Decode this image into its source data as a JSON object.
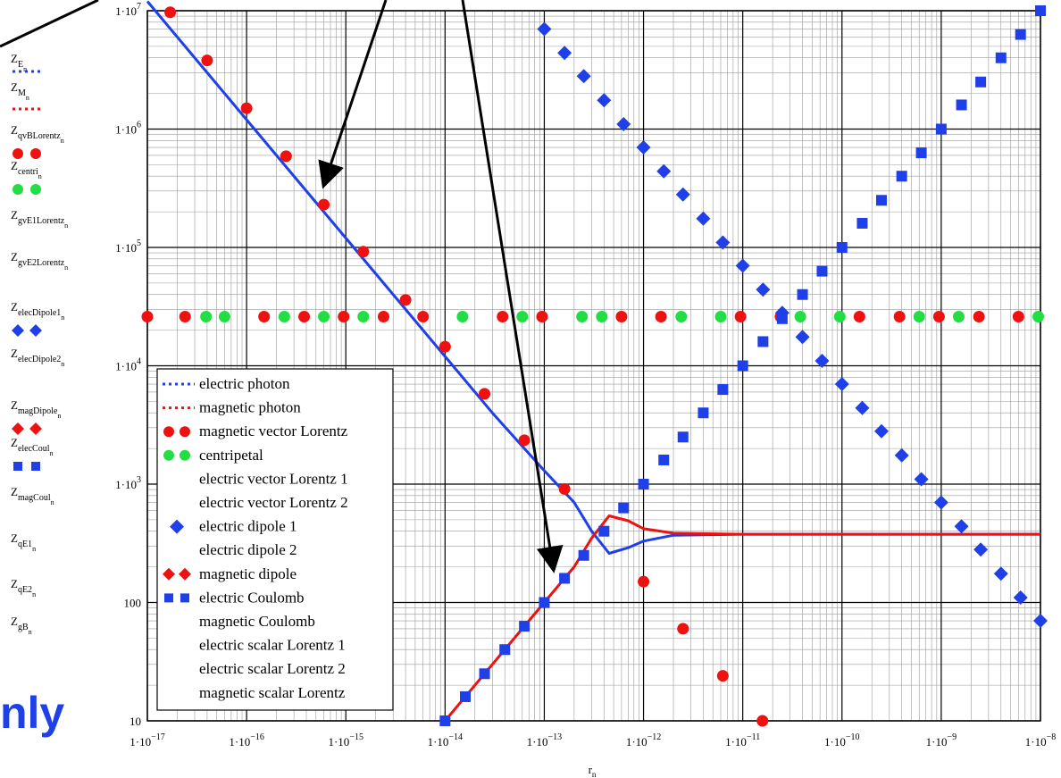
{
  "chart_data": {
    "type": "scatter",
    "title": "",
    "xlabel": "r_n",
    "x_scale": "log",
    "y_scale": "log",
    "xlim": [
      1e-17,
      1e-08
    ],
    "ylim": [
      10,
      10000000.0
    ],
    "grid": true,
    "legend_position": "bottom-left",
    "x_ticks": [
      {
        "base": "1·10",
        "exp": "−17"
      },
      {
        "base": "1·10",
        "exp": "−16"
      },
      {
        "base": "1·10",
        "exp": "−15"
      },
      {
        "base": "1·10",
        "exp": "−14"
      },
      {
        "base": "1·10",
        "exp": "−13"
      },
      {
        "base": "1·10",
        "exp": "−12"
      },
      {
        "base": "1·10",
        "exp": "−11"
      },
      {
        "base": "1·10",
        "exp": "−10"
      },
      {
        "base": "1·10",
        "exp": "−9"
      },
      {
        "base": "1·10",
        "exp": "−8"
      }
    ],
    "y_ticks": [
      {
        "value": 10,
        "base": "10",
        "exp": ""
      },
      {
        "value": 100,
        "base": "100",
        "exp": ""
      },
      {
        "value": 1000,
        "base": "1·10",
        "exp": "3"
      },
      {
        "value": 10000,
        "base": "1·10",
        "exp": "4"
      },
      {
        "value": 100000,
        "base": "1·10",
        "exp": "5"
      },
      {
        "value": 1000000,
        "base": "1·10",
        "exp": "6"
      },
      {
        "value": 10000000,
        "base": "1·10",
        "exp": "7"
      }
    ],
    "y_labels": [
      {
        "main": "Z",
        "sub": "E",
        "subsub": "n"
      },
      {
        "main": "Z",
        "sub": "M",
        "subsub": "n"
      },
      {
        "main": "Z",
        "sub": "qvBLorentz",
        "subsub": "n"
      },
      {
        "main": "Z",
        "sub": "centri",
        "subsub": "n"
      },
      {
        "main": "Z",
        "sub": "gvE1Lorentz",
        "subsub": "n"
      },
      {
        "main": "Z",
        "sub": "gvE2Lorentz",
        "subsub": "n"
      },
      {
        "main": "Z",
        "sub": "elecDipole1",
        "subsub": "n"
      },
      {
        "main": "Z",
        "sub": "elecDipole2",
        "subsub": "n"
      },
      {
        "main": "Z",
        "sub": "magDipole",
        "subsub": "n"
      },
      {
        "main": "Z",
        "sub": "elecCoul",
        "subsub": "n"
      },
      {
        "main": "Z",
        "sub": "magCoul",
        "subsub": "n"
      },
      {
        "main": "Z",
        "sub": "qE1",
        "subsub": "n"
      },
      {
        "main": "Z",
        "sub": "qE2",
        "subsub": "n"
      },
      {
        "main": "Z",
        "sub": "gB",
        "subsub": "n"
      }
    ],
    "legend": [
      "electric photon",
      "magnetic photon",
      "magnetic vector Lorentz",
      "centripetal",
      "electric vector Lorentz 1",
      "electric vector Lorentz 2",
      "electric dipole 1",
      "electric dipole 2",
      "magnetic dipole",
      "electric Coulomb",
      "magnetic Coulomb",
      "electric scalar Lorentz 1",
      "electric scalar Lorentz 2",
      "magnetic scalar Lorentz"
    ],
    "series": [
      {
        "name": "electric photon",
        "points": [
          [
            1e-17,
            12000000.0
          ],
          [
            1e-16,
            1200000.0
          ],
          [
            1e-15,
            120000.0
          ],
          [
            1e-14,
            12000.0
          ],
          [
            3e-14,
            4000
          ],
          [
            1e-13,
            1300
          ],
          [
            2e-13,
            700
          ],
          [
            3e-13,
            400
          ],
          [
            4.5e-13,
            260
          ],
          [
            7e-13,
            290
          ],
          [
            1e-12,
            330
          ],
          [
            2e-12,
            370
          ],
          [
            1e-11,
            377
          ],
          [
            1e-08,
            377
          ]
        ]
      },
      {
        "name": "magnetic photon",
        "points": [
          [
            1e-14,
            10
          ],
          [
            3e-14,
            30
          ],
          [
            1e-13,
            100
          ],
          [
            2e-13,
            200
          ],
          [
            3e-13,
            350
          ],
          [
            4.5e-13,
            540
          ],
          [
            7e-13,
            490
          ],
          [
            1e-12,
            420
          ],
          [
            2e-12,
            385
          ],
          [
            1e-11,
            377
          ],
          [
            1e-08,
            377
          ]
        ]
      },
      {
        "name": "magnetic vector Lorentz",
        "points": [
          [
            1.7e-17,
            9700000.0
          ],
          [
            4e-17,
            3800000.0
          ],
          [
            1e-16,
            1500000.0
          ],
          [
            2.5e-16,
            590000.0
          ],
          [
            6e-16,
            230000.0
          ],
          [
            1.5e-15,
            92000.0
          ],
          [
            4e-15,
            36000.0
          ],
          [
            1e-14,
            14500.0
          ],
          [
            2.5e-14,
            5800
          ],
          [
            6.3e-14,
            2350
          ],
          [
            1.6e-13,
            910
          ],
          [
            1e-12,
            150
          ],
          [
            2.5e-12,
            60
          ],
          [
            6.3e-12,
            24
          ],
          [
            1.58e-11,
            10
          ],
          [
            1e-17,
            26000.0
          ],
          [
            2.4e-17,
            26000.0
          ],
          [
            1.5e-16,
            26000.0
          ],
          [
            3.8e-16,
            26000.0
          ],
          [
            9.5e-16,
            26000.0
          ],
          [
            2.4e-15,
            26000.0
          ],
          [
            6e-15,
            26000.0
          ],
          [
            3.8e-14,
            26000.0
          ],
          [
            9.5e-14,
            26000.0
          ],
          [
            6e-13,
            26000.0
          ],
          [
            1.5e-12,
            26000.0
          ],
          [
            9.5e-12,
            26000.0
          ],
          [
            2.4e-11,
            26000.0
          ],
          [
            1.5e-10,
            26000.0
          ],
          [
            3.8e-10,
            26000.0
          ],
          [
            9.5e-10,
            26000.0
          ],
          [
            2.4e-09,
            26000.0
          ],
          [
            6e-09,
            26000.0
          ]
        ]
      },
      {
        "name": "centripetal",
        "points": [
          [
            3.9e-17,
            26000.0
          ],
          [
            6e-17,
            26000.0
          ],
          [
            2.4e-16,
            26000.0
          ],
          [
            6e-16,
            26000.0
          ],
          [
            1.5e-15,
            26000.0
          ],
          [
            1.5e-14,
            26000.0
          ],
          [
            6e-14,
            26000.0
          ],
          [
            2.4e-13,
            26000.0
          ],
          [
            3.8e-13,
            26000.0
          ],
          [
            2.4e-12,
            26000.0
          ],
          [
            6e-12,
            26000.0
          ],
          [
            3.8e-11,
            26000.0
          ],
          [
            9.5e-11,
            26000.0
          ],
          [
            6e-10,
            26000.0
          ],
          [
            1.5e-09,
            26000.0
          ],
          [
            9.5e-09,
            26000.0
          ]
        ]
      },
      {
        "name": "electric dipole 1",
        "points": [
          [
            1e-13,
            7000000.0
          ],
          [
            1.6e-13,
            4400000.0
          ],
          [
            2.5e-13,
            2800000.0
          ],
          [
            4e-13,
            1750000.0
          ],
          [
            6.3e-13,
            1100000.0
          ],
          [
            1e-12,
            700000.0
          ],
          [
            1.6e-12,
            440000.0
          ],
          [
            2.5e-12,
            280000.0
          ],
          [
            4e-12,
            175000.0
          ],
          [
            6.3e-12,
            110000.0
          ],
          [
            1e-11,
            70000.0
          ],
          [
            1.6e-11,
            44000.0
          ],
          [
            2.5e-11,
            28000.0
          ],
          [
            4e-11,
            17500.0
          ],
          [
            6.3e-11,
            11000.0
          ],
          [
            1e-10,
            7000
          ],
          [
            1.6e-10,
            4400
          ],
          [
            2.5e-10,
            2800
          ],
          [
            4e-10,
            1750
          ],
          [
            6.3e-10,
            1100
          ],
          [
            1e-09,
            700
          ],
          [
            1.6e-09,
            440
          ],
          [
            2.5e-09,
            280
          ],
          [
            4e-09,
            175
          ],
          [
            6.3e-09,
            110
          ],
          [
            1e-08,
            70
          ]
        ]
      },
      {
        "name": "electric Coulomb",
        "points": [
          [
            1e-14,
            10
          ],
          [
            1.6e-14,
            16
          ],
          [
            2.5e-14,
            25
          ],
          [
            4e-14,
            40
          ],
          [
            6.3e-14,
            63
          ],
          [
            1e-13,
            100
          ],
          [
            1.6e-13,
            160
          ],
          [
            2.5e-13,
            250
          ],
          [
            4e-13,
            400
          ],
          [
            6.3e-13,
            630
          ],
          [
            1e-12,
            1000
          ],
          [
            1.6e-12,
            1600
          ],
          [
            2.5e-12,
            2500
          ],
          [
            4e-12,
            4000
          ],
          [
            6.3e-12,
            6300
          ],
          [
            1e-11,
            10000.0
          ],
          [
            1.6e-11,
            16000.0
          ],
          [
            2.5e-11,
            25000.0
          ],
          [
            4e-11,
            40000.0
          ],
          [
            6.3e-11,
            63000.0
          ],
          [
            1e-10,
            100000.0
          ],
          [
            1.6e-10,
            160000.0
          ],
          [
            2.5e-10,
            250000.0
          ],
          [
            4e-10,
            400000.0
          ],
          [
            6.3e-10,
            630000.0
          ],
          [
            1e-09,
            1000000.0
          ],
          [
            1.6e-09,
            1600000.0
          ],
          [
            2.5e-09,
            2500000.0
          ],
          [
            4e-09,
            4000000.0
          ],
          [
            6.3e-09,
            6300000.0
          ],
          [
            1e-08,
            10000000.0
          ]
        ]
      }
    ]
  },
  "overlay_text": {
    "big_word": "nly"
  },
  "colors": {
    "blue": "#1f3fe8",
    "red": "#ee1111",
    "green": "#22dd44",
    "grid_major": "#000000",
    "grid_minor": "#9a9a9a"
  }
}
